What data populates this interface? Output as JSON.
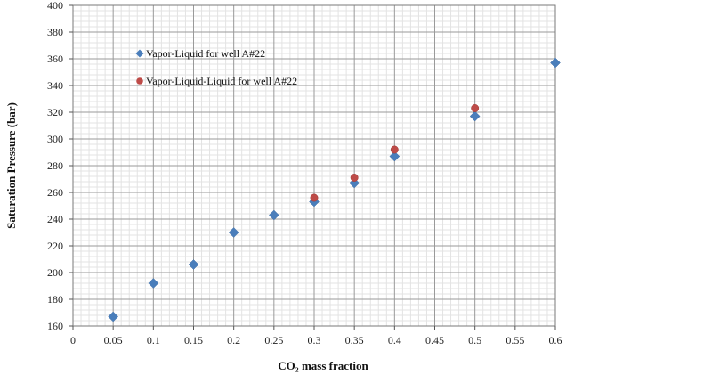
{
  "chart_data": {
    "type": "scatter",
    "xlabel": "CO₂ mass fraction",
    "ylabel": "Saturation Pressure (bar)",
    "xlim": [
      0,
      0.6
    ],
    "ylim": [
      160,
      400
    ],
    "x_ticks": [
      "0",
      "0.05",
      "0.1",
      "0.15",
      "0.2",
      "0.25",
      "0.3",
      "0.35",
      "0.4",
      "0.45",
      "0.5",
      "0.55",
      "0.6"
    ],
    "y_ticks": [
      "160",
      "180",
      "200",
      "220",
      "240",
      "260",
      "280",
      "300",
      "320",
      "340",
      "360",
      "380",
      "400"
    ],
    "grid": true,
    "legend_position": "top-left",
    "series": [
      {
        "name": "Vapor-Liquid for well A#22",
        "marker": "diamond",
        "color": "#4a7ebb",
        "points": [
          {
            "x": 0.05,
            "y": 167
          },
          {
            "x": 0.1,
            "y": 192
          },
          {
            "x": 0.15,
            "y": 206
          },
          {
            "x": 0.2,
            "y": 230
          },
          {
            "x": 0.25,
            "y": 243
          },
          {
            "x": 0.3,
            "y": 253
          },
          {
            "x": 0.35,
            "y": 267
          },
          {
            "x": 0.4,
            "y": 287
          },
          {
            "x": 0.5,
            "y": 317
          },
          {
            "x": 0.6,
            "y": 357
          }
        ]
      },
      {
        "name": "Vapor-Liquid-Liquid for well A#22",
        "marker": "circle",
        "color": "#be4b48",
        "points": [
          {
            "x": 0.3,
            "y": 256
          },
          {
            "x": 0.35,
            "y": 271
          },
          {
            "x": 0.4,
            "y": 292
          },
          {
            "x": 0.5,
            "y": 323
          }
        ]
      }
    ]
  }
}
